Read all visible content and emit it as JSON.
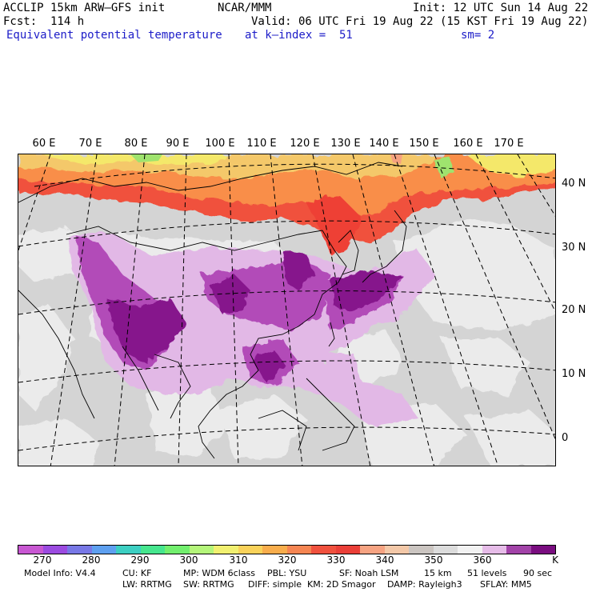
{
  "header": {
    "model": "ACCLIP 15km ARW–GFS init",
    "center": "NCAR/MMM",
    "init": "Init: 12 UTC Sun 14 Aug 22",
    "fcst": "Fcst:  114 h",
    "valid": "Valid: 06 UTC Fri 19 Aug 22 (15 KST Fri 19 Aug 22)",
    "field": "Equivalent potential temperature",
    "level": "at k–index =  51",
    "smooth": "sm= 2"
  },
  "map": {
    "lon_labels": [
      "60 E",
      "70 E",
      "80 E",
      "90 E",
      "100 E",
      "110 E",
      "120 E",
      "130 E",
      "140 E",
      "150 E",
      "160 E",
      "170 E"
    ],
    "lat_labels": [
      "40 N",
      "30 N",
      "20 N",
      "10 N",
      "0"
    ],
    "colors": {
      "background_gray": "#d4d4d4",
      "light_gray": "#ebebeb",
      "light_purple": "#e2b8e6",
      "mid_purple": "#b24cb8",
      "dark_purple": "#86138c",
      "red": "#ee4036",
      "salmon": "#f6a180",
      "orange": "#f98e48",
      "yellow": "#f4e86a",
      "green": "#9fe36e"
    }
  },
  "colorbar": {
    "colors": [
      "#c857d2",
      "#9b4be0",
      "#7878e6",
      "#5ea0f0",
      "#3ccfc2",
      "#46e68e",
      "#72ef6e",
      "#b4f57a",
      "#f1f070",
      "#f9d25a",
      "#f8ad4c",
      "#f58552",
      "#f0513e",
      "#ea3f38",
      "#f6a382",
      "#f3c8a8",
      "#cbc5c1",
      "#dcdcdc",
      "#f2f2f2",
      "#e6bce8",
      "#a243a8",
      "#7a0d80"
    ],
    "labels": [
      "270",
      "280",
      "290",
      "300",
      "310",
      "320",
      "330",
      "340",
      "350",
      "360",
      "K"
    ]
  },
  "footer": {
    "line1": [
      "Model Info: V4.4",
      "CU: KF",
      "MP: WDM 6class",
      "PBL: YSU",
      "SF: Noah LSM",
      "15 km",
      "51 levels",
      "90 sec"
    ],
    "line2": [
      "LW: RRTMG",
      "SW: RRTMG",
      "DIFF: simple",
      "KM: 2D Smagor",
      "DAMP: Rayleigh3",
      "SFLAY: MM5"
    ]
  }
}
